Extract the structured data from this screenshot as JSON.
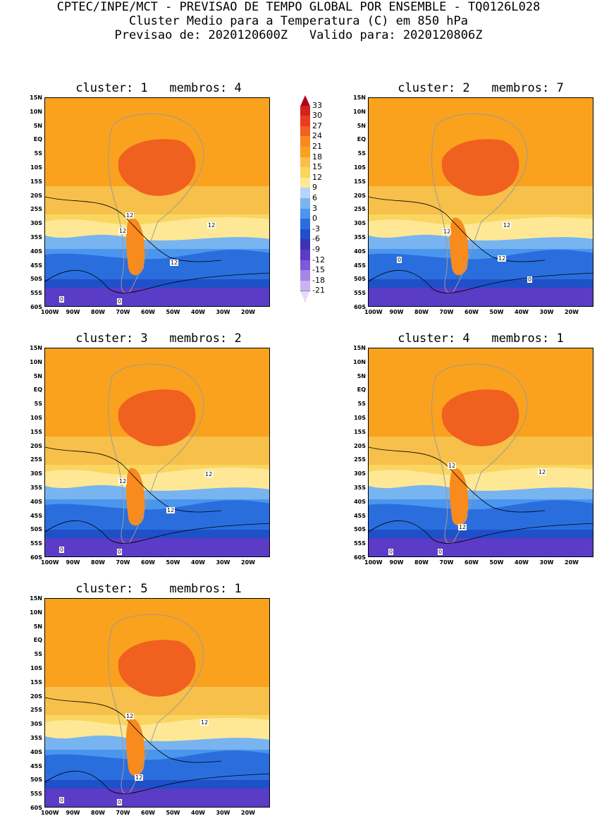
{
  "header": {
    "line1": "CPTEC/INPE/MCT - PREVISAO DE TEMPO GLOBAL POR ENSEMBLE - TQ0126L028",
    "line2": "Cluster Medio para a Temperatura (C) em 850 hPa",
    "line3": "Previsao de: 2020120600Z   Valido para: 2020120806Z"
  },
  "lat_labels": [
    "15N",
    "10N",
    "5N",
    "EQ",
    "5S",
    "10S",
    "15S",
    "20S",
    "25S",
    "30S",
    "35S",
    "40S",
    "45S",
    "50S",
    "55S",
    "60S"
  ],
  "lon_labels": [
    "100W",
    "90W",
    "80W",
    "70W",
    "60W",
    "50W",
    "40W",
    "30W",
    "20W"
  ],
  "colorbar": {
    "labels": [
      "33",
      "30",
      "27",
      "24",
      "21",
      "18",
      "15",
      "12",
      "9",
      "6",
      "3",
      "0",
      "-3",
      "-6",
      "-9",
      "-12",
      "-15",
      "-18",
      "-21"
    ],
    "colors": [
      "#b2001e",
      "#d2241e",
      "#ea3c24",
      "#f0601e",
      "#f88a1e",
      "#faa21e",
      "#f6c04a",
      "#fad660",
      "#fee896",
      "#b4d4fa",
      "#78b4f0",
      "#4a96ee",
      "#2a6ede",
      "#1e50c8",
      "#3c32b4",
      "#5a3cc6",
      "#7c5ad8",
      "#a486e6",
      "#c8b4f2",
      "#e6daf8"
    ]
  },
  "panels": [
    {
      "title": "cluster: 1   membros: 4",
      "contour_labels": [
        "12",
        "12",
        "12",
        "12",
        "0",
        "0"
      ]
    },
    {
      "title": "cluster: 2   membros: 7",
      "contour_labels": [
        "12",
        "12",
        "12",
        "0",
        "0"
      ]
    },
    {
      "title": "cluster: 3   membros: 2",
      "contour_labels": [
        "12",
        "12",
        "12",
        "0",
        "0"
      ]
    },
    {
      "title": "cluster: 4   membros: 1",
      "contour_labels": [
        "12",
        "12",
        "12",
        "0",
        "0"
      ]
    },
    {
      "title": "cluster: 5   membros: 1",
      "contour_labels": [
        "12",
        "12",
        "12",
        "0",
        "0"
      ]
    }
  ]
}
